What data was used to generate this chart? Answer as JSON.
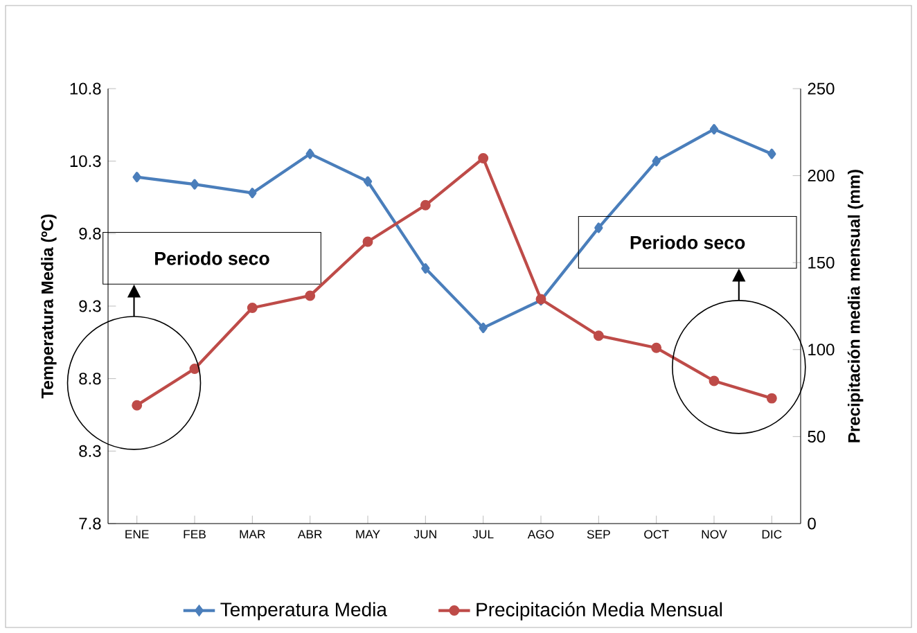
{
  "chart_data": {
    "type": "line",
    "categories": [
      "ENE",
      "FEB",
      "MAR",
      "ABR",
      "MAY",
      "JUN",
      "JUL",
      "AGO",
      "SEP",
      "OCT",
      "NOV",
      "DIC"
    ],
    "series": [
      {
        "name": "Temperatura Media",
        "color": "#4a7ebb",
        "marker": "diamond",
        "axis": "y",
        "values": [
          10.19,
          10.14,
          10.08,
          10.35,
          10.16,
          9.56,
          9.15,
          9.34,
          9.84,
          10.3,
          10.52,
          10.35
        ]
      },
      {
        "name": "Precipitación Media Mensual",
        "color": "#be4b48",
        "marker": "circle",
        "axis": "y2",
        "values": [
          68,
          89,
          124,
          131,
          162,
          183,
          210,
          129,
          108,
          101,
          82,
          72
        ]
      }
    ],
    "ylabel": "Temperatura Media (ºC)",
    "y2label": "Precipitación media mensual (mm)",
    "ylim": [
      7.8,
      10.8
    ],
    "yticks": [
      7.8,
      8.3,
      8.8,
      9.3,
      9.8,
      10.3,
      10.8
    ],
    "y2lim": [
      0,
      250
    ],
    "y2ticks": [
      0,
      50,
      100,
      150,
      200,
      250
    ],
    "annotations": [
      "Periodo seco",
      "Periodo seco"
    ],
    "legend": "bottom",
    "grid": false
  }
}
